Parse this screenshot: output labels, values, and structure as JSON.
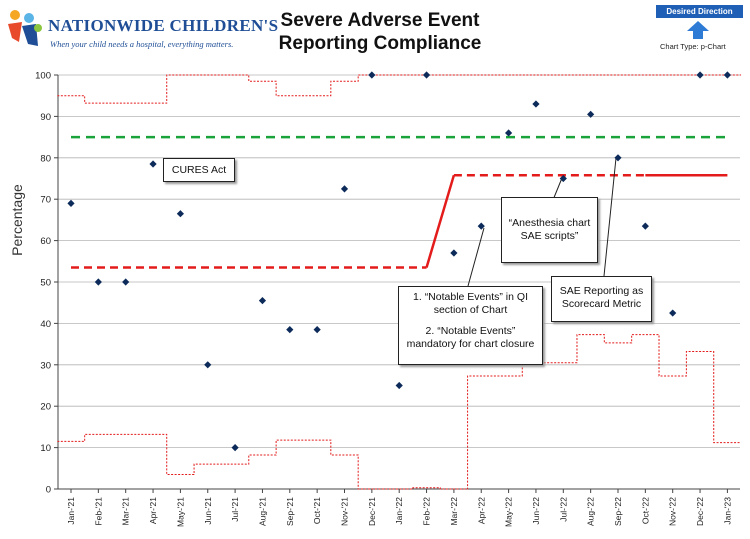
{
  "header": {
    "org_name": "NATIONWIDE CHILDREN'S",
    "org_tagline": "When your child needs a hospital, everything matters.",
    "title_line1": "Severe Adverse Event",
    "title_line2": "Reporting Compliance",
    "desired_direction": "Desired Direction",
    "chart_type": "Chart Type: p-Chart"
  },
  "colors": {
    "marker": "#0d2b5a",
    "control_limits": "#e31b1b",
    "center_line": "#e31b1b",
    "target": "#1aa33a",
    "brand": "#1f5fb5"
  },
  "annotations": {
    "cures": "CURES Act",
    "notable_1": "1. “Notable Events” in QI section of Chart",
    "notable_2": "2. “Notable Events” mandatory for chart closure",
    "anesthesia": "“Anesthesia chart SAE scripts”",
    "scorecard": "SAE Reporting as Scorecard Metric"
  },
  "chart_data": {
    "type": "scatter",
    "ylabel": "Percentage",
    "ylim": [
      0,
      100
    ],
    "yticks": [
      0,
      10,
      20,
      30,
      40,
      50,
      60,
      70,
      80,
      90,
      100
    ],
    "categories": [
      "Jan-'21",
      "Feb-'21",
      "Mar-'21",
      "Apr-'21",
      "May-'21",
      "Jun-'21",
      "Jul-'21",
      "Aug-'21",
      "Sep-'21",
      "Oct-'21",
      "Nov-'21",
      "Dec-'21",
      "Jan-'22",
      "Feb-'22",
      "Mar-'22",
      "Apr-'22",
      "May-'22",
      "Jun-'22",
      "Jul-'22",
      "Aug-'22",
      "Sep-'22",
      "Oct-'22",
      "Nov-'22",
      "Dec-'22",
      "Jan-'23"
    ],
    "values": [
      69,
      50,
      50,
      78.5,
      66.5,
      30,
      10,
      45.5,
      38.5,
      38.5,
      72.5,
      100,
      25,
      100,
      57,
      63.5,
      86,
      93,
      75,
      90.5,
      80,
      63.5,
      42.5,
      100,
      100
    ],
    "target": 85,
    "center_line": [
      {
        "from_index": 0,
        "to_index": 13,
        "value": 53.5,
        "style": "dashed"
      },
      {
        "from_index": 13,
        "to_index": 14,
        "value_from": 53.5,
        "value_to": 75.8,
        "style": "solid"
      },
      {
        "from_index": 14,
        "to_index": 21,
        "value": 75.8,
        "style": "dashed"
      },
      {
        "from_index": 21,
        "to_index": 24,
        "value": 75.8,
        "style": "solid"
      }
    ],
    "upper_control_limit": [
      95,
      93.2,
      93.2,
      93.2,
      100,
      100,
      100,
      98.5,
      95,
      95,
      98.5,
      100,
      100,
      100,
      100,
      100,
      100,
      100,
      100,
      100,
      100,
      100,
      100,
      100,
      100
    ],
    "lower_control_limit": [
      11.5,
      13.2,
      13.2,
      13.2,
      3.5,
      6,
      6,
      8.2,
      11.8,
      11.8,
      8.2,
      0,
      0,
      0.3,
      0,
      27.3,
      27.3,
      30.5,
      30.5,
      37.3,
      35.3,
      37.3,
      27.3,
      33.2,
      11.2
    ]
  }
}
